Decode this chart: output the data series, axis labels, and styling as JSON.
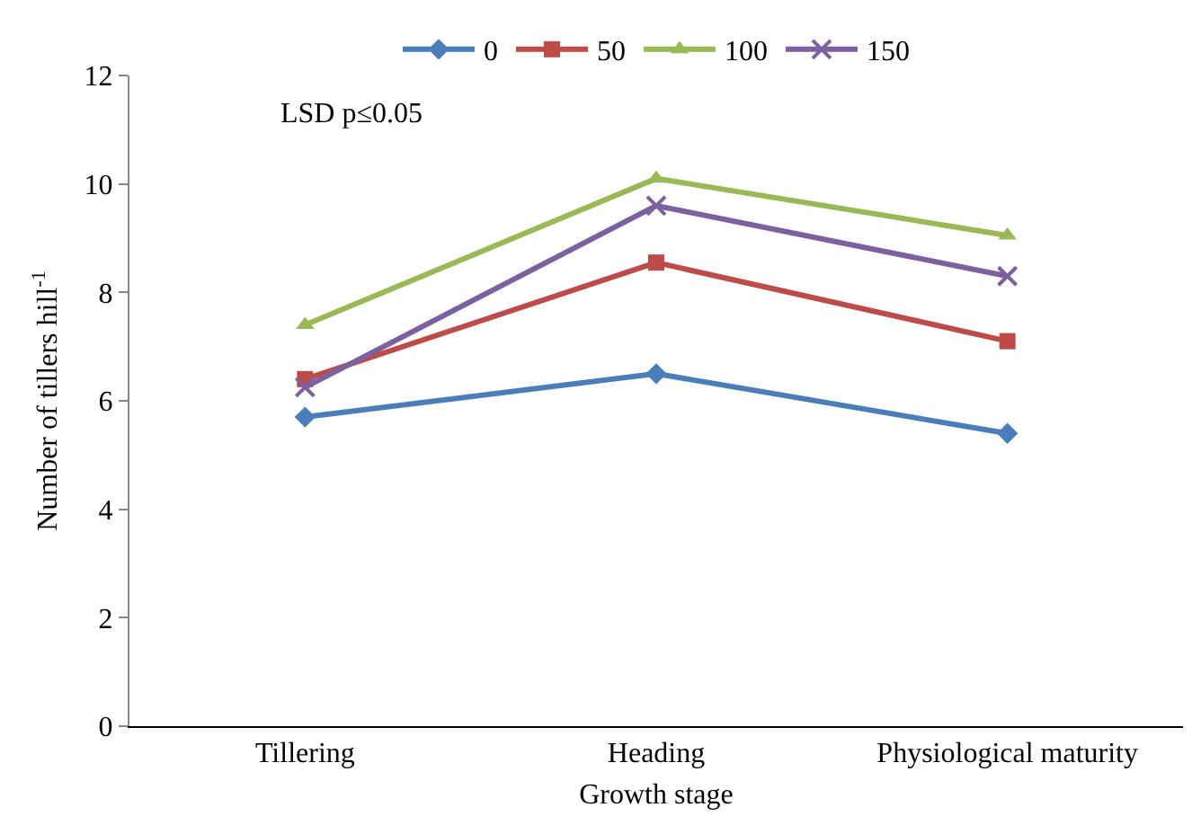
{
  "chart_data": {
    "type": "line",
    "xlabel": "Growth stage",
    "ylabel": "Number of tillers hill$^{-1}$",
    "categories": [
      "Tillering",
      "Heading",
      "Physiological maturity"
    ],
    "series": [
      {
        "name": "0",
        "color": "#4a7ebb",
        "marker": "diamond",
        "values": [
          5.7,
          6.5,
          5.4
        ]
      },
      {
        "name": "50",
        "color": "#be4b48",
        "marker": "square",
        "values": [
          6.4,
          8.55,
          7.1
        ]
      },
      {
        "name": "100",
        "color": "#98b954",
        "marker": "triangle",
        "values": [
          7.4,
          10.1,
          9.05
        ]
      },
      {
        "name": "150",
        "color": "#7d60a0",
        "marker": "cross",
        "values": [
          6.25,
          9.6,
          8.3
        ]
      }
    ],
    "ylim": [
      0,
      12
    ],
    "yticks": [
      0,
      2,
      4,
      6,
      8,
      10,
      12
    ],
    "legend": "top",
    "annotations": [
      "LSD p≤0.05"
    ]
  }
}
